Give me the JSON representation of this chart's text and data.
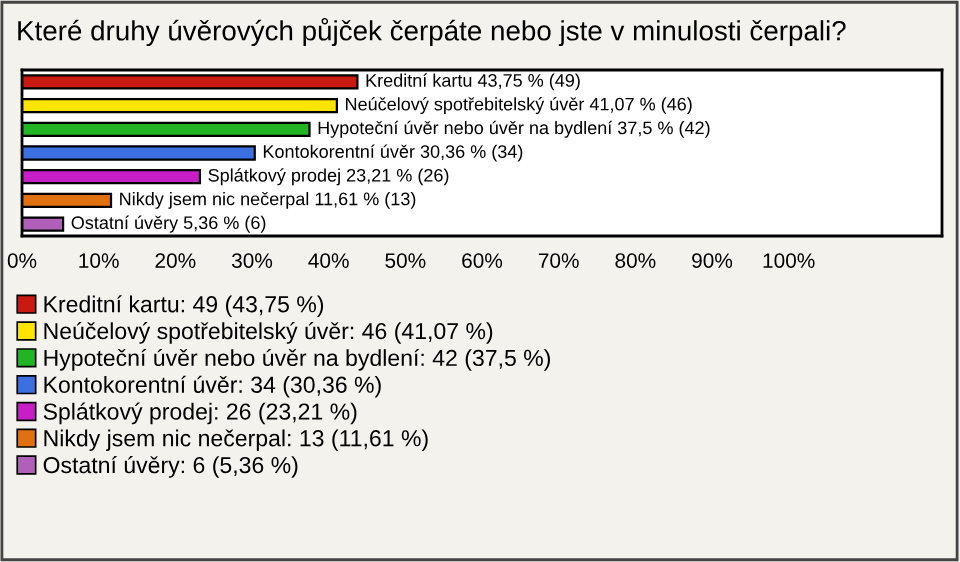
{
  "chart_data": {
    "type": "bar",
    "orientation": "horizontal",
    "title": "Které druhy úvěrových půjček čerpáte nebo jste v minulosti čerpali?",
    "categories": [
      null,
      null,
      null,
      null,
      null,
      null,
      null
    ],
    "series": [
      {
        "name": "Kreditní kartu: 49 (43,75 %)",
        "color": "#c81a10",
        "values": [
          43.75,
          null,
          null,
          null,
          null,
          null,
          null
        ],
        "value_labels": [
          "Kreditní kartu 43,75 % (49)",
          null,
          null,
          null,
          null,
          null,
          null
        ]
      },
      {
        "name": "Neúčelový spotřebitelský úvěr: 46 (41,07 %)",
        "color": "#ffe400",
        "values": [
          null,
          41.07,
          null,
          null,
          null,
          null,
          null
        ],
        "value_labels": [
          null,
          "Neúčelový spotřebitelský úvěr 41,07 % (46)",
          null,
          null,
          null,
          null,
          null
        ]
      },
      {
        "name": "Hypoteční úvěr nebo úvěr na bydlení: 42 (37,5 %)",
        "color": "#22b422",
        "values": [
          null,
          null,
          37.5,
          null,
          null,
          null,
          null
        ],
        "value_labels": [
          null,
          null,
          "Hypoteční úvěr nebo úvěr na bydlení 37,5 % (42)",
          null,
          null,
          null,
          null
        ]
      },
      {
        "name": "Kontokorentní úvěr: 34 (30,36 %)",
        "color": "#3c70e0",
        "values": [
          null,
          null,
          null,
          30.36,
          null,
          null,
          null
        ],
        "value_labels": [
          null,
          null,
          null,
          "Kontokorentní úvěr 30,36 % (34)",
          null,
          null,
          null
        ]
      },
      {
        "name": "Splátkový prodej: 26 (23,21 %)",
        "color": "#c81ec8",
        "values": [
          null,
          null,
          null,
          null,
          23.21,
          null,
          null
        ],
        "value_labels": [
          null,
          null,
          null,
          null,
          "Splátkový prodej 23,21 % (26)",
          null,
          null
        ]
      },
      {
        "name": "Nikdy jsem nic nečerpal: 13 (11,61 %)",
        "color": "#e07010",
        "values": [
          null,
          null,
          null,
          null,
          null,
          11.61,
          null
        ],
        "value_labels": [
          null,
          null,
          null,
          null,
          null,
          "Nikdy jsem nic nečerpal 11,61 % (13)",
          null
        ]
      },
      {
        "name": "Ostatní úvěry: 6 (5,36 %)",
        "color": "#b060b8",
        "values": [
          null,
          null,
          null,
          null,
          null,
          null,
          5.36
        ],
        "value_labels": [
          null,
          null,
          null,
          null,
          null,
          null,
          "Ostatní úvěry 5,36 % (6)"
        ]
      }
    ],
    "xlim": [
      0,
      120
    ],
    "xticks": [
      {
        "value": 0,
        "label": "0%"
      },
      {
        "value": 10,
        "label": "10%"
      },
      {
        "value": 20,
        "label": "20%"
      },
      {
        "value": 30,
        "label": "30%"
      },
      {
        "value": 40,
        "label": "40%"
      },
      {
        "value": 50,
        "label": "50%"
      },
      {
        "value": 60,
        "label": "60%"
      },
      {
        "value": 70,
        "label": "70%"
      },
      {
        "value": 80,
        "label": "80%"
      },
      {
        "value": 90,
        "label": "90%"
      },
      {
        "value": 100,
        "label": "100%"
      }
    ],
    "grid": false,
    "legend": "bottom"
  }
}
